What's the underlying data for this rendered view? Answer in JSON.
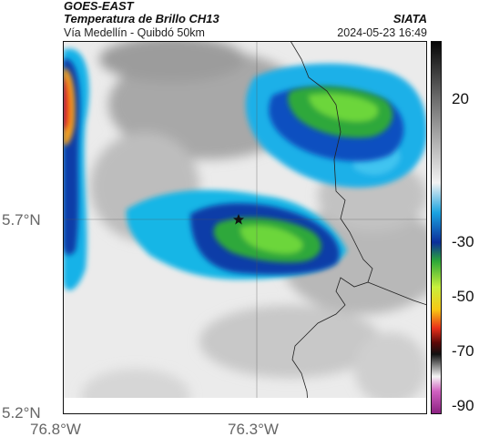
{
  "header": {
    "source": "GOES-EAST",
    "product": "Temperatura de Brillo CH13",
    "route": "Vía Medellín - Quibdó 50km",
    "org": "SIATA",
    "datetime": "2024-05-23 16:49"
  },
  "axes": {
    "lat_ticks": [
      "5.7°N",
      "5.2°N"
    ],
    "lon_ticks": [
      "76.8°W",
      "76.3°W"
    ]
  },
  "colorbar": {
    "labels": [
      "20",
      "-30",
      "-50",
      "-70",
      "-90"
    ]
  },
  "colors": {
    "cold_cloud": "#00a0ff",
    "deep_convection": "#003cb4",
    "warm_ground": "#f0f0f0"
  }
}
